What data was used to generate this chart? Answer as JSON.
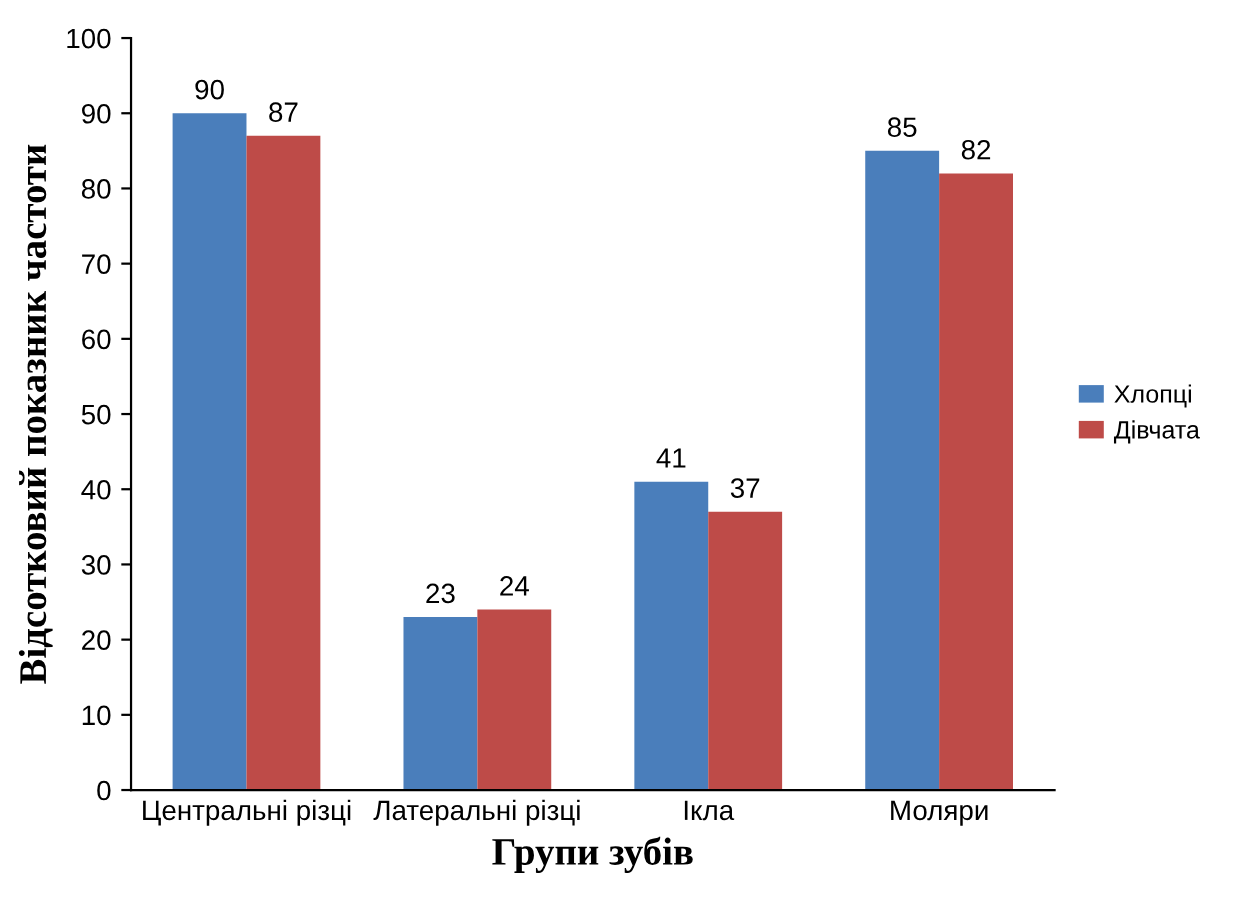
{
  "chart_data": {
    "type": "bar",
    "xlabel": "Групи зубів",
    "ylabel": "Відсотковий показник частоти",
    "categories": [
      "Центральні різці",
      "Латеральні різці",
      "Ікла",
      "Моляри"
    ],
    "series": [
      {
        "name": "Хлопці",
        "color": "#4a7ebb",
        "values": [
          90,
          23,
          41,
          85
        ]
      },
      {
        "name": "Дівчата",
        "color": "#be4b48",
        "values": [
          87,
          24,
          37,
          82
        ]
      }
    ],
    "ylim": [
      0,
      100
    ],
    "yticks": [
      0,
      10,
      20,
      30,
      40,
      50,
      60,
      70,
      80,
      90,
      100
    ],
    "grid": false,
    "legend": "right",
    "data_labels": true
  }
}
